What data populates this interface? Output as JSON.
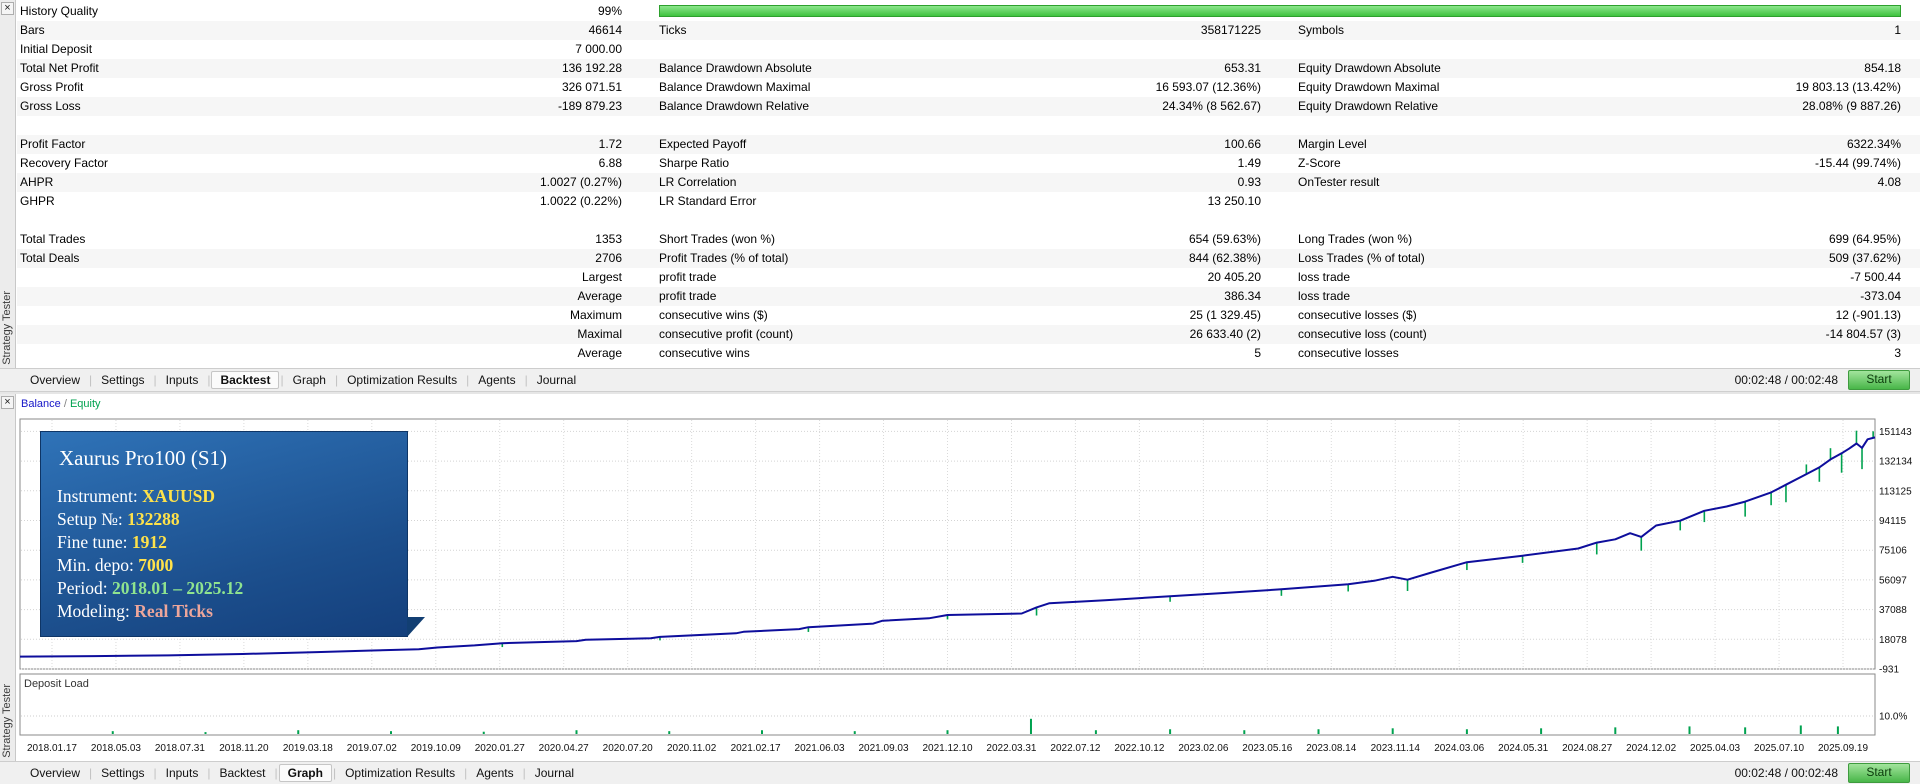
{
  "app": {
    "panel_label": "Strategy Tester",
    "close_glyph": "×"
  },
  "tabs": {
    "items": [
      "Overview",
      "Settings",
      "Inputs",
      "Backtest",
      "Graph",
      "Optimization Results",
      "Agents",
      "Journal"
    ],
    "top_active": "Backtest",
    "bottom_active": "Graph",
    "elapsed": "00:02:48 / 00:02:48",
    "start_label": "Start"
  },
  "stats": {
    "history_quality_label": "History Quality",
    "history_quality_value": "99%",
    "history_quality_bar_color": "#3fc23f",
    "rows": [
      [
        "Bars",
        "46614",
        "Ticks",
        "358171225",
        "Symbols",
        "1"
      ],
      [
        "Initial Deposit",
        "7 000.00",
        "",
        "",
        "",
        ""
      ],
      [
        "Total Net Profit",
        "136 192.28",
        "Balance Drawdown Absolute",
        "653.31",
        "Equity Drawdown Absolute",
        "854.18"
      ],
      [
        "Gross Profit",
        "326 071.51",
        "Balance Drawdown Maximal",
        "16 593.07 (12.36%)",
        "Equity Drawdown Maximal",
        "19 803.13 (13.42%)"
      ],
      [
        "Gross Loss",
        "-189 879.23",
        "Balance Drawdown Relative",
        "24.34% (8 562.67)",
        "Equity Drawdown Relative",
        "28.08% (9 887.26)"
      ],
      [
        "",
        "",
        "",
        "",
        "",
        ""
      ],
      [
        "Profit Factor",
        "1.72",
        "Expected Payoff",
        "100.66",
        "Margin Level",
        "6322.34%"
      ],
      [
        "Recovery Factor",
        "6.88",
        "Sharpe Ratio",
        "1.49",
        "Z-Score",
        "-15.44 (99.74%)"
      ],
      [
        "AHPR",
        "1.0027 (0.27%)",
        "LR Correlation",
        "0.93",
        "OnTester result",
        "4.08"
      ],
      [
        "GHPR",
        "1.0022 (0.22%)",
        "LR Standard Error",
        "13 250.10",
        "",
        ""
      ],
      [
        "",
        "",
        "",
        "",
        "",
        ""
      ],
      [
        "Total Trades",
        "1353",
        "Short Trades (won %)",
        "654 (59.63%)",
        "Long Trades (won %)",
        "699 (64.95%)"
      ],
      [
        "Total Deals",
        "2706",
        "Profit Trades (% of total)",
        "844 (62.38%)",
        "Loss Trades (% of total)",
        "509 (37.62%)"
      ],
      [
        "",
        "Largest",
        "profit trade",
        "20 405.20",
        "loss trade",
        "-7 500.44"
      ],
      [
        "",
        "Average",
        "profit trade",
        "386.34",
        "loss trade",
        "-373.04"
      ],
      [
        "",
        "Maximum",
        "consecutive wins ($)",
        "25 (1 329.45)",
        "consecutive losses ($)",
        "12 (-901.13)"
      ],
      [
        "",
        "Maximal",
        "consecutive profit (count)",
        "26 633.40 (2)",
        "consecutive loss (count)",
        "-14 804.57 (3)"
      ],
      [
        "",
        "Average",
        "consecutive wins",
        "5",
        "consecutive losses",
        "3"
      ]
    ]
  },
  "chart_data": {
    "type": "line",
    "legend": {
      "balance_label": "Balance",
      "separator": " / ",
      "equity_label": "Equity"
    },
    "balance_color": "#0e0e9c",
    "equity_color": "#00a24f",
    "grid_on": true,
    "y_ticks": [
      151143,
      132134,
      113125,
      94115,
      75106,
      56097,
      37088,
      18078,
      -931
    ],
    "x_labels": [
      "2018.01.17",
      "2018.05.03",
      "2018.07.31",
      "2018.11.20",
      "2019.03.18",
      "2019.07.02",
      "2019.10.09",
      "2020.01.27",
      "2020.04.27",
      "2020.07.20",
      "2020.11.02",
      "2021.02.17",
      "2021.06.03",
      "2021.09.03",
      "2021.12.10",
      "2022.03.31",
      "2022.07.12",
      "2022.10.12",
      "2023.02.06",
      "2023.05.16",
      "2023.08.14",
      "2023.11.14",
      "2024.03.06",
      "2024.05.31",
      "2024.08.27",
      "2024.12.02",
      "2025.04.03",
      "2025.07.10",
      "2025.09.19"
    ],
    "balance_points": [
      [
        0,
        7000
      ],
      [
        0.04,
        7300
      ],
      [
        0.08,
        7800
      ],
      [
        0.12,
        8700
      ],
      [
        0.16,
        9900
      ],
      [
        0.19,
        10900
      ],
      [
        0.215,
        11700
      ],
      [
        0.225,
        12800
      ],
      [
        0.245,
        14200
      ],
      [
        0.26,
        15600
      ],
      [
        0.3,
        16900
      ],
      [
        0.305,
        17800
      ],
      [
        0.34,
        18700
      ],
      [
        0.345,
        19600
      ],
      [
        0.386,
        21900
      ],
      [
        0.39,
        22900
      ],
      [
        0.42,
        24600
      ],
      [
        0.425,
        25800
      ],
      [
        0.46,
        28100
      ],
      [
        0.465,
        30000
      ],
      [
        0.49,
        31500
      ],
      [
        0.5,
        33600
      ],
      [
        0.54,
        34600
      ],
      [
        0.548,
        38500
      ],
      [
        0.555,
        41200
      ],
      [
        0.585,
        43100
      ],
      [
        0.62,
        45600
      ],
      [
        0.65,
        47800
      ],
      [
        0.68,
        50100
      ],
      [
        0.716,
        53300
      ],
      [
        0.73,
        55500
      ],
      [
        0.74,
        58100
      ],
      [
        0.748,
        56200
      ],
      [
        0.76,
        60500
      ],
      [
        0.78,
        67400
      ],
      [
        0.81,
        71600
      ],
      [
        0.84,
        76200
      ],
      [
        0.85,
        80000
      ],
      [
        0.86,
        82100
      ],
      [
        0.868,
        86000
      ],
      [
        0.874,
        83600
      ],
      [
        0.882,
        90900
      ],
      [
        0.895,
        94000
      ],
      [
        0.908,
        100300
      ],
      [
        0.92,
        103100
      ],
      [
        0.93,
        106200
      ],
      [
        0.944,
        112100
      ],
      [
        0.952,
        117000
      ],
      [
        0.963,
        123800
      ],
      [
        0.97,
        128100
      ],
      [
        0.976,
        133200
      ],
      [
        0.982,
        137100
      ],
      [
        0.986,
        140100
      ],
      [
        0.99,
        143400
      ],
      [
        0.993,
        140600
      ],
      [
        0.996,
        146100
      ],
      [
        1,
        147300
      ]
    ],
    "equity_spikes": [
      [
        0.26,
        -2500
      ],
      [
        0.345,
        -2200
      ],
      [
        0.425,
        -3000
      ],
      [
        0.5,
        -2800
      ],
      [
        0.548,
        -5200
      ],
      [
        0.62,
        -3500
      ],
      [
        0.68,
        -4200
      ],
      [
        0.716,
        -4600
      ],
      [
        0.748,
        -7200
      ],
      [
        0.78,
        -5000
      ],
      [
        0.81,
        -4600
      ],
      [
        0.85,
        -7600
      ],
      [
        0.874,
        -8800
      ],
      [
        0.895,
        -6200
      ],
      [
        0.908,
        -7200
      ],
      [
        0.93,
        -9600
      ],
      [
        0.944,
        -8200
      ],
      [
        0.952,
        -11200
      ],
      [
        0.97,
        -9200
      ],
      [
        0.982,
        -12400
      ],
      [
        0.993,
        -13600
      ],
      [
        0.963,
        6200
      ],
      [
        0.976,
        7200
      ],
      [
        0.99,
        8200
      ],
      [
        0.999,
        4200
      ]
    ],
    "deposit_load": {
      "label": "Deposit Load",
      "scale_label": "10.0%",
      "spikes": [
        [
          0.05,
          1.5
        ],
        [
          0.1,
          1
        ],
        [
          0.15,
          2
        ],
        [
          0.2,
          1.5
        ],
        [
          0.25,
          1.2
        ],
        [
          0.3,
          2
        ],
        [
          0.35,
          1.5
        ],
        [
          0.4,
          2
        ],
        [
          0.45,
          1.5
        ],
        [
          0.5,
          2
        ],
        [
          0.545,
          8
        ],
        [
          0.58,
          2
        ],
        [
          0.62,
          2.5
        ],
        [
          0.66,
          2
        ],
        [
          0.7,
          2.5
        ],
        [
          0.74,
          3
        ],
        [
          0.78,
          2.5
        ],
        [
          0.82,
          3
        ],
        [
          0.86,
          3.5
        ],
        [
          0.9,
          4
        ],
        [
          0.93,
          3.5
        ],
        [
          0.96,
          4.5
        ],
        [
          0.98,
          4
        ]
      ]
    },
    "info_box": {
      "title": "Xaurus Pro100 (S1)",
      "lines": [
        {
          "label": "Instrument: ",
          "value": "XAUUSD",
          "color": "#ffe24a"
        },
        {
          "label": "Setup №: ",
          "value": "132288",
          "color": "#ffe24a"
        },
        {
          "label": "Fine tune: ",
          "value": "1912",
          "color": "#ffe24a"
        },
        {
          "label": "Min. depo: ",
          "value": "7000",
          "color": "#ffe24a"
        },
        {
          "label": "Period: ",
          "value": "2018.01 – 2025.12",
          "color": "#8fe48f"
        },
        {
          "label": "Modeling: ",
          "value": "Real Ticks",
          "color": "#eda69b"
        }
      ]
    }
  }
}
